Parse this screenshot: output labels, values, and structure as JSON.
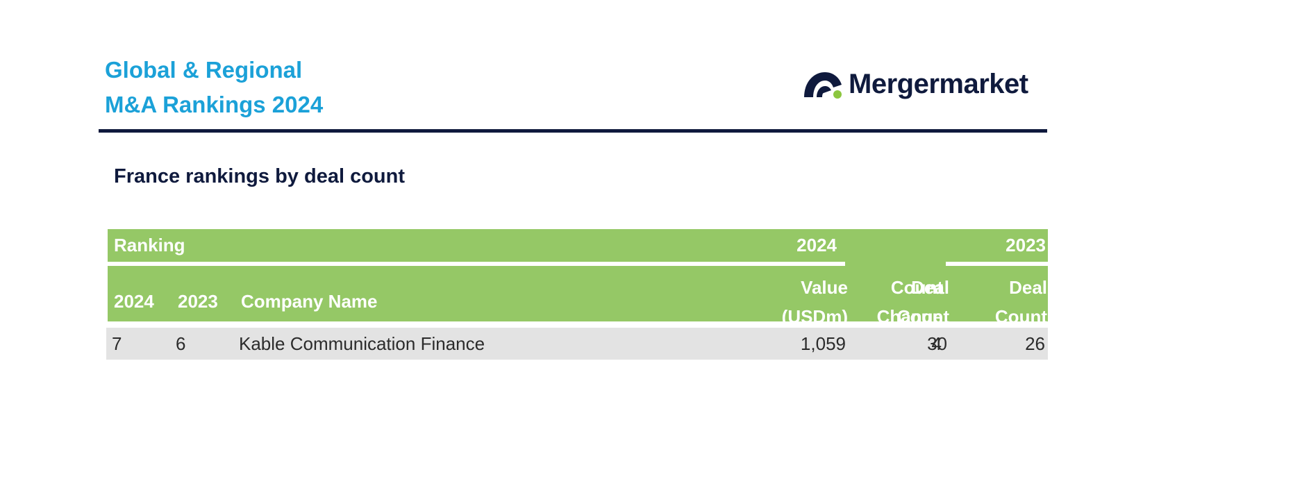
{
  "header": {
    "title_line1": "Global & Regional",
    "title_line2": "M&A Rankings 2024",
    "logo_text": "Mergermarket"
  },
  "section": {
    "title": "France rankings by deal count"
  },
  "table": {
    "group_headers": {
      "ranking": "Ranking",
      "year_2024": "2024",
      "year_2023": "2023"
    },
    "columns": {
      "rank_2024": "2024",
      "rank_2023": "2023",
      "company": "Company Name",
      "value_line1": "Value",
      "value_line2": "(USDm)",
      "deal_line1": "Deal",
      "deal_line2": "Count",
      "change_line1": "Count",
      "change_line2": "Change",
      "deal2023_line1": "Deal",
      "deal2023_line2": "Count"
    },
    "rows": [
      {
        "rank_2024": "7",
        "rank_2023": "6",
        "company": "Kable Communication Finance",
        "value": "1,059",
        "deal_count": "30",
        "count_change": "4",
        "deal_count_2023": "26"
      }
    ]
  },
  "colors": {
    "title_blue": "#1ba1d8",
    "navy": "#0f1a3d",
    "header_green": "#95c866",
    "row_gray": "#e3e3e3",
    "logo_dot_green": "#8cc63f"
  },
  "icons": {
    "logo_mark": "mergermarket-logo-icon"
  }
}
